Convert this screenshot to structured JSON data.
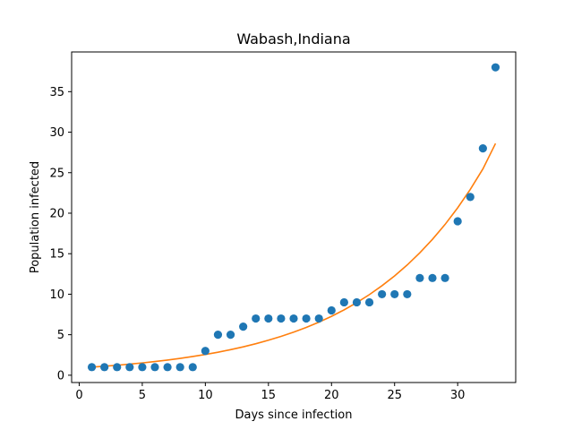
{
  "chart_data": {
    "type": "scatter",
    "title": "Wabash,Indiana",
    "xlabel": "Days since infection",
    "ylabel": "Population infected",
    "xlim": [
      -0.6,
      34.6
    ],
    "ylim": [
      -0.9,
      39.9
    ],
    "xticks": [
      0,
      5,
      10,
      15,
      20,
      25,
      30
    ],
    "yticks": [
      0,
      5,
      10,
      15,
      20,
      25,
      30,
      35
    ],
    "grid": false,
    "colors": {
      "points": "#1f77b4",
      "fit": "#ff7f0e"
    },
    "series": [
      {
        "kind": "scatter",
        "x": [
          1,
          2,
          3,
          4,
          5,
          6,
          7,
          8,
          9,
          10,
          11,
          12,
          13,
          14,
          15,
          16,
          17,
          18,
          19,
          20,
          21,
          22,
          23,
          24,
          25,
          26,
          27,
          28,
          29,
          30,
          31,
          32,
          33
        ],
        "values": [
          1,
          1,
          1,
          1,
          1,
          1,
          1,
          1,
          1,
          3,
          5,
          5,
          6,
          7,
          7,
          7,
          7,
          7,
          7,
          8,
          9,
          9,
          9,
          10,
          10,
          10,
          12,
          12,
          12,
          19,
          22,
          28,
          38
        ]
      },
      {
        "kind": "line",
        "x": [
          1,
          2,
          3,
          4,
          5,
          6,
          7,
          8,
          9,
          10,
          11,
          12,
          13,
          14,
          15,
          16,
          17,
          18,
          19,
          20,
          21,
          22,
          23,
          24,
          25,
          26,
          27,
          28,
          29,
          30,
          31,
          32,
          33
        ],
        "values": [
          1.0,
          1.11,
          1.23,
          1.37,
          1.52,
          1.69,
          1.87,
          2.08,
          2.31,
          2.56,
          2.84,
          3.16,
          3.5,
          3.89,
          4.32,
          4.79,
          5.32,
          5.9,
          6.55,
          7.27,
          8.07,
          8.96,
          9.95,
          11.05,
          12.26,
          13.61,
          15.11,
          16.77,
          18.61,
          20.66,
          22.94,
          25.46,
          28.6
        ]
      }
    ]
  }
}
